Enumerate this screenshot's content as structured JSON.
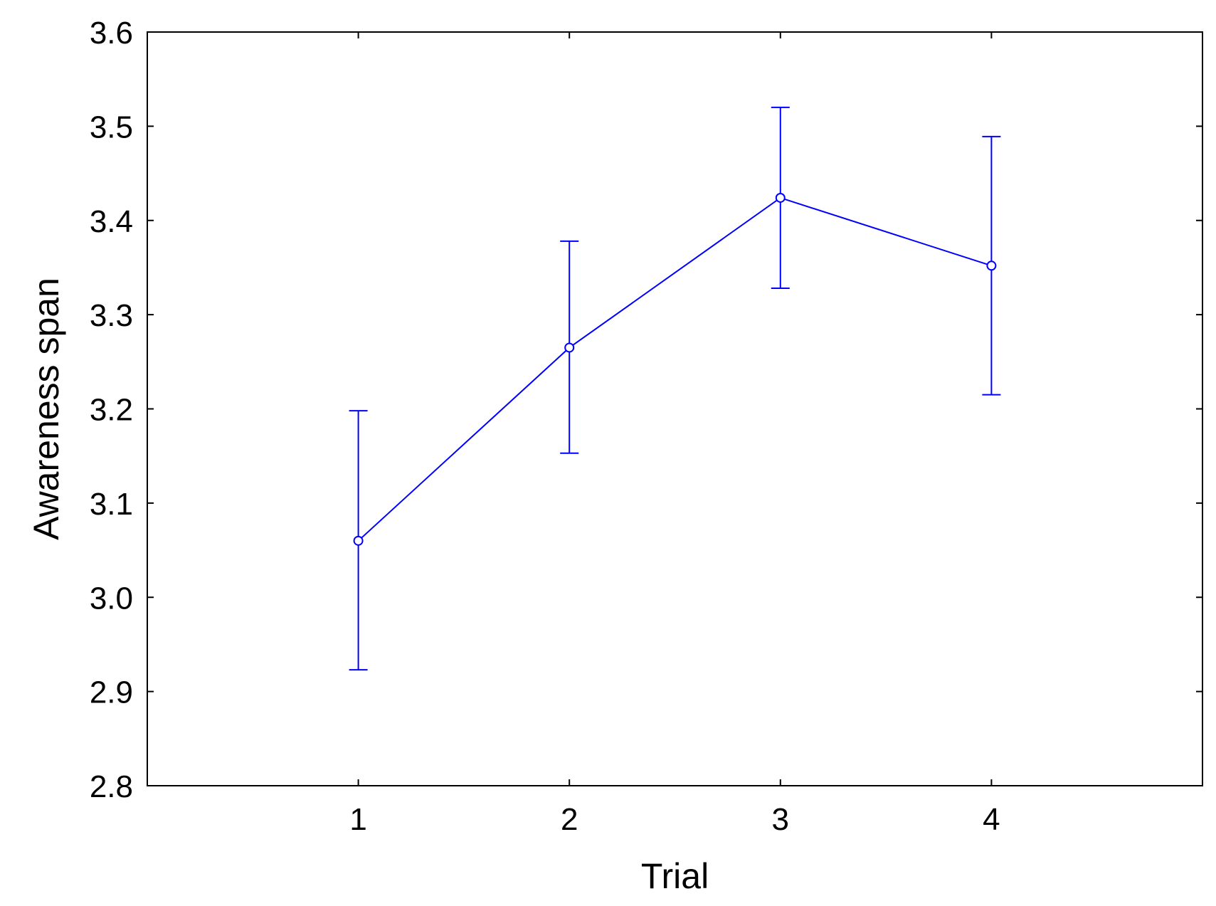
{
  "chart_data": {
    "type": "line",
    "title": "",
    "xlabel": "Trial",
    "ylabel": "Awareness span",
    "categories": [
      "1",
      "2",
      "3",
      "4"
    ],
    "series": [
      {
        "values": [
          3.06,
          3.265,
          3.424,
          3.352
        ],
        "error_low": [
          2.923,
          3.153,
          3.328,
          3.215
        ],
        "error_high": [
          3.198,
          3.378,
          3.52,
          3.489
        ]
      }
    ],
    "ylim": [
      2.8,
      3.6
    ],
    "yticks": [
      "2.8",
      "2.9",
      "3.0",
      "3.1",
      "3.2",
      "3.3",
      "3.4",
      "3.5",
      "3.6"
    ],
    "x_range": [
      0,
      5
    ],
    "grid": false,
    "line_color": "#0000ff",
    "marker": "open-circle"
  }
}
